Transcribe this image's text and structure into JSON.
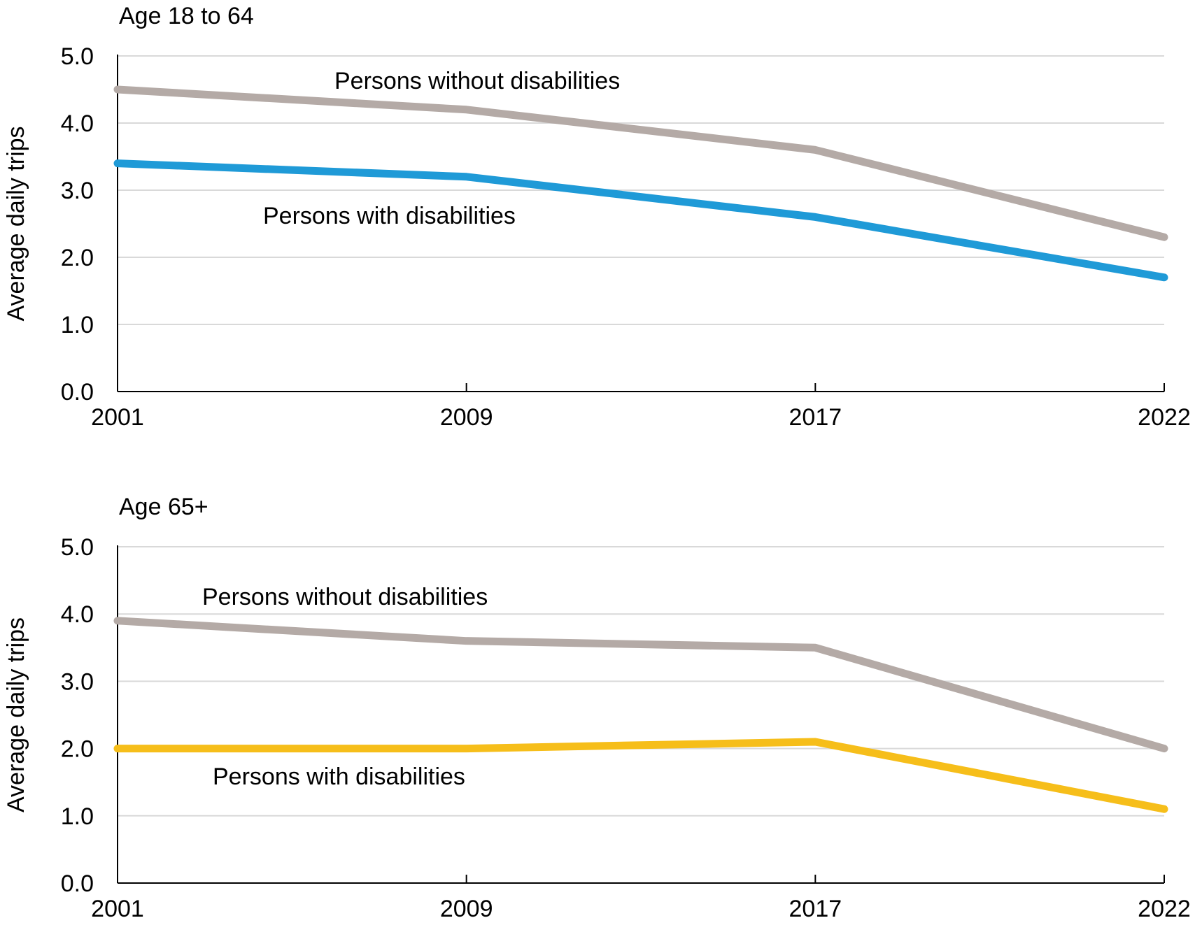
{
  "colors": {
    "background": "#ffffff",
    "gridline": "#d9d9d9",
    "axis": "#000000",
    "without_disabilities": "#b4aaa6",
    "with_disabilities_18_64": "#1f9ad7",
    "with_disabilities_65": "#f6be1a"
  },
  "chart_data": [
    {
      "type": "line",
      "title": "Age 18 to 64",
      "xlabel": "",
      "ylabel": "Average daily trips",
      "categories": [
        "2001",
        "2009",
        "2017",
        "2022"
      ],
      "ylim": [
        0,
        5
      ],
      "yticks": [
        "0.0",
        "1.0",
        "2.0",
        "3.0",
        "4.0",
        "5.0"
      ],
      "grid": true,
      "series": [
        {
          "name": "Persons without disabilities",
          "color": "#b4aaa6",
          "values": [
            4.5,
            4.2,
            3.6,
            2.3
          ]
        },
        {
          "name": "Persons with disabilities",
          "color": "#1f9ad7",
          "values": [
            3.4,
            3.2,
            2.6,
            1.7
          ]
        }
      ]
    },
    {
      "type": "line",
      "title": "Age 65+",
      "xlabel": "",
      "ylabel": "Average daily trips",
      "categories": [
        "2001",
        "2009",
        "2017",
        "2022"
      ],
      "ylim": [
        0,
        5
      ],
      "yticks": [
        "0.0",
        "1.0",
        "2.0",
        "3.0",
        "4.0",
        "5.0"
      ],
      "grid": true,
      "series": [
        {
          "name": "Persons without disabilities",
          "color": "#b4aaa6",
          "values": [
            3.9,
            3.6,
            3.5,
            2.0
          ]
        },
        {
          "name": "Persons with disabilities",
          "color": "#f6be1a",
          "values": [
            2.0,
            2.0,
            2.1,
            1.1
          ]
        }
      ]
    }
  ]
}
